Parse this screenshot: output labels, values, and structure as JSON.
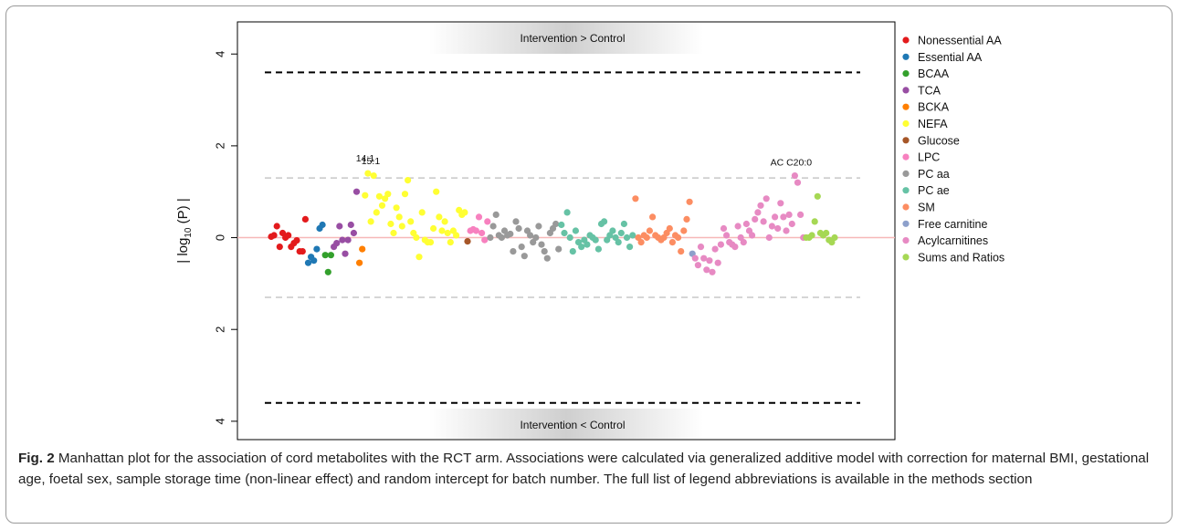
{
  "chart_data": {
    "type": "scatter",
    "y_axis": {
      "label_prefix": "| log",
      "label_sub": "10",
      "label_suffix": "(P) |",
      "ticks": [
        {
          "value": 4,
          "label": "4"
        },
        {
          "value": 2,
          "label": "2"
        },
        {
          "value": 0,
          "label": "0"
        },
        {
          "value": -2,
          "label": "2"
        },
        {
          "value": -4,
          "label": "4"
        }
      ],
      "ylim": [
        -4.4,
        4.7
      ]
    },
    "top_band_label": "Intervention > Control",
    "bottom_band_label": "Intervention < Control",
    "thresholds": {
      "bonferroni": 3.6,
      "nominal": 1.3
    },
    "legend_position": "right",
    "series": [
      {
        "name": "Nonessential AA",
        "color": "#e31a1c",
        "values": [
          0.02,
          0.05,
          0.25,
          -0.2,
          0.1,
          0.0,
          0.05,
          -0.2,
          -0.12,
          -0.06,
          -0.3,
          -0.3,
          0.4
        ]
      },
      {
        "name": "Essential AA",
        "color": "#1f78b4",
        "values": [
          -0.55,
          -0.42,
          -0.5,
          -0.25,
          0.2,
          0.28
        ]
      },
      {
        "name": "BCAA",
        "color": "#33a02c",
        "values": [
          -0.38,
          -0.75,
          -0.38
        ]
      },
      {
        "name": "TCA",
        "color": "#984ea3",
        "values": [
          -0.2,
          -0.12,
          0.25,
          -0.05,
          -0.35,
          -0.05,
          0.28,
          0.1,
          1.0
        ]
      },
      {
        "name": "BCKA",
        "color": "#ff7f00",
        "values": [
          -0.55,
          -0.25
        ]
      },
      {
        "name": "NEFA",
        "color": "#ffff33",
        "values": [
          0.92,
          1.4,
          0.35,
          1.35,
          0.55,
          0.9,
          0.7,
          0.85,
          0.95,
          0.3,
          0.1,
          0.65,
          0.45,
          0.25,
          0.95,
          1.25,
          0.35,
          0.1,
          0.0,
          -0.42,
          0.55,
          -0.05,
          -0.1,
          -0.1,
          0.2,
          1.0,
          0.45,
          0.15,
          0.35,
          0.1,
          -0.1,
          0.15,
          0.05,
          0.6,
          0.5,
          0.55
        ]
      },
      {
        "name": "Glucose",
        "color": "#a65628",
        "values": [
          -0.08
        ]
      },
      {
        "name": "LPC",
        "color": "#f781bf",
        "values": [
          0.15,
          0.18,
          0.15,
          0.45,
          0.1,
          -0.05,
          0.35
        ]
      },
      {
        "name": "PC aa",
        "color": "#999999",
        "values": [
          0.0,
          0.25,
          0.5,
          0.05,
          0.0,
          0.15,
          0.05,
          0.08,
          -0.3,
          0.35,
          0.2,
          -0.2,
          -0.4,
          0.15,
          0.05,
          -0.1,
          0.0,
          0.25,
          -0.15,
          -0.3,
          -0.45,
          0.1,
          0.2,
          0.3,
          -0.25
        ]
      },
      {
        "name": "PC ae",
        "color": "#66c2a5",
        "values": [
          0.28,
          0.1,
          0.55,
          0.0,
          -0.3,
          0.15,
          -0.1,
          -0.2,
          -0.05,
          -0.15,
          0.05,
          0.0,
          -0.05,
          -0.25,
          0.3,
          0.35,
          -0.05,
          0.05,
          0.15,
          0.0,
          -0.1,
          0.1,
          0.3,
          0.0,
          -0.2,
          0.05
        ]
      },
      {
        "name": "SM",
        "color": "#fc8d62",
        "values": [
          0.85,
          0.0,
          -0.1,
          0.05,
          0.0,
          0.15,
          0.45,
          0.05,
          0.0,
          -0.05,
          0.0,
          0.1,
          0.2,
          -0.1,
          0.05,
          0.0,
          -0.3,
          0.15,
          0.4,
          0.78
        ]
      },
      {
        "name": "Free carnitine",
        "color": "#8da0cb",
        "values": [
          -0.35
        ]
      },
      {
        "name": "Acylcarnitines",
        "color": "#e78ac3",
        "values": [
          -0.45,
          -0.6,
          -0.2,
          -0.45,
          -0.7,
          -0.5,
          -0.75,
          -0.25,
          -0.55,
          -0.15,
          0.2,
          0.05,
          -0.1,
          -0.15,
          -0.2,
          0.25,
          0.0,
          -0.1,
          0.3,
          0.15,
          0.05,
          0.4,
          0.55,
          0.7,
          0.35,
          0.85,
          0.0,
          0.25,
          0.45,
          0.2,
          0.75,
          0.45,
          0.15,
          0.5,
          0.3,
          1.35,
          1.2,
          0.5,
          0.0
        ]
      },
      {
        "name": "Sums and Ratios",
        "color": "#a6d854",
        "values": [
          0.0,
          0.0,
          0.05,
          0.35,
          0.9,
          0.1,
          0.05,
          0.1,
          -0.05,
          -0.1,
          0.0
        ]
      }
    ],
    "annotations": [
      {
        "text": "14:1",
        "series": "NEFA",
        "index": 1
      },
      {
        "text": "15:1",
        "series": "NEFA",
        "index": 1
      },
      {
        "text": "AC C20:0",
        "series": "Acylcarnitines",
        "index": 35
      }
    ]
  },
  "caption": {
    "label": "Fig. 2",
    "text": "Manhattan plot for the association of cord metabolites with the RCT arm. Associations were calculated via generalized additive model with correction for maternal BMI, gestational age, foetal sex, sample storage time (non-linear effect) and random intercept for batch number. The full list of legend abbreviations is available in the methods section"
  }
}
